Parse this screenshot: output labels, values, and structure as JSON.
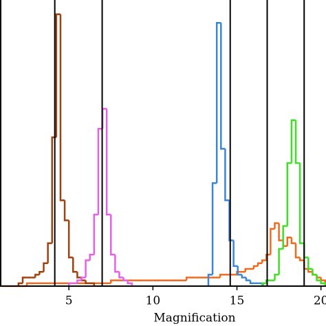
{
  "chart_data": {
    "type": "step-histogram",
    "x_label": "Magnification",
    "xlim": [
      0.9,
      20.3
    ],
    "ylim": [
      0,
      100
    ],
    "xticks": [
      5,
      10,
      15,
      20
    ],
    "vlines": [
      4.16,
      6.98,
      14.6,
      16.8,
      19.0
    ],
    "vline_color": "#000000",
    "series": [
      {
        "color": "#f06a1e",
        "bins": [
          1.0,
          1.5,
          2.0,
          2.5,
          3.0,
          3.5,
          4.0,
          4.5,
          5.0,
          5.5,
          6.0,
          6.5,
          7.0,
          7.5,
          8.0,
          8.5,
          9.0,
          9.5,
          10.0,
          10.5,
          11.0,
          11.5,
          12.0,
          12.5,
          13.0,
          13.5,
          14.0,
          14.5,
          15.0,
          15.5,
          16.0,
          16.25,
          16.5,
          16.75,
          17.0,
          17.25,
          17.5,
          17.75,
          18.0,
          18.25,
          18.5,
          18.75,
          19.0,
          19.25,
          19.5,
          19.75,
          20.0,
          20.25
        ],
        "values": [
          0,
          0,
          0,
          1,
          1,
          1,
          1,
          1,
          1,
          1,
          1,
          1,
          1,
          2,
          2,
          2,
          2,
          2,
          2,
          2,
          2,
          2,
          3,
          3,
          3,
          3,
          4,
          4,
          5,
          6,
          7,
          8,
          9,
          11,
          20,
          22,
          16,
          14,
          17,
          15,
          10,
          9,
          6,
          5,
          4,
          3,
          2
        ]
      },
      {
        "color": "#a0410d",
        "bins": [
          2.0,
          2.25,
          2.5,
          2.75,
          3.0,
          3.25,
          3.5,
          3.75,
          4.0,
          4.25,
          4.5,
          4.75,
          5.0,
          5.25,
          5.5,
          5.75,
          6.0,
          6.25,
          6.5
        ],
        "values": [
          1,
          3,
          3,
          3,
          4,
          5,
          8,
          15,
          52,
          95,
          30,
          23,
          10,
          5,
          3,
          2,
          1,
          1
        ]
      },
      {
        "color": "#e75fe8",
        "bins": [
          5.0,
          5.25,
          5.5,
          5.75,
          6.0,
          6.25,
          6.5,
          6.75,
          7.0,
          7.25,
          7.5,
          7.75,
          8.0,
          8.25,
          8.5,
          8.75
        ],
        "values": [
          1,
          1,
          2,
          3,
          9,
          11,
          25,
          55,
          62,
          25,
          11,
          5,
          3,
          2,
          1
        ]
      },
      {
        "color": "#3a86d6",
        "bins": [
          13.3,
          13.55,
          13.8,
          14.05,
          14.3,
          14.55,
          14.8,
          15.05,
          15.3,
          15.55,
          15.8,
          16.05,
          16.3,
          16.55
        ],
        "values": [
          4,
          36,
          92,
          48,
          30,
          16,
          7,
          4,
          3,
          2,
          1,
          1,
          1
        ]
      },
      {
        "color": "#3ee024",
        "bins": [
          16.5,
          16.75,
          17.0,
          17.25,
          17.5,
          17.75,
          18.0,
          18.25,
          18.5,
          18.75,
          19.0,
          19.25,
          19.5,
          19.75,
          20.0,
          20.25
        ],
        "values": [
          1,
          2,
          2,
          4,
          13,
          21,
          43,
          58,
          43,
          15,
          10,
          6,
          4,
          2,
          1
        ]
      }
    ]
  }
}
